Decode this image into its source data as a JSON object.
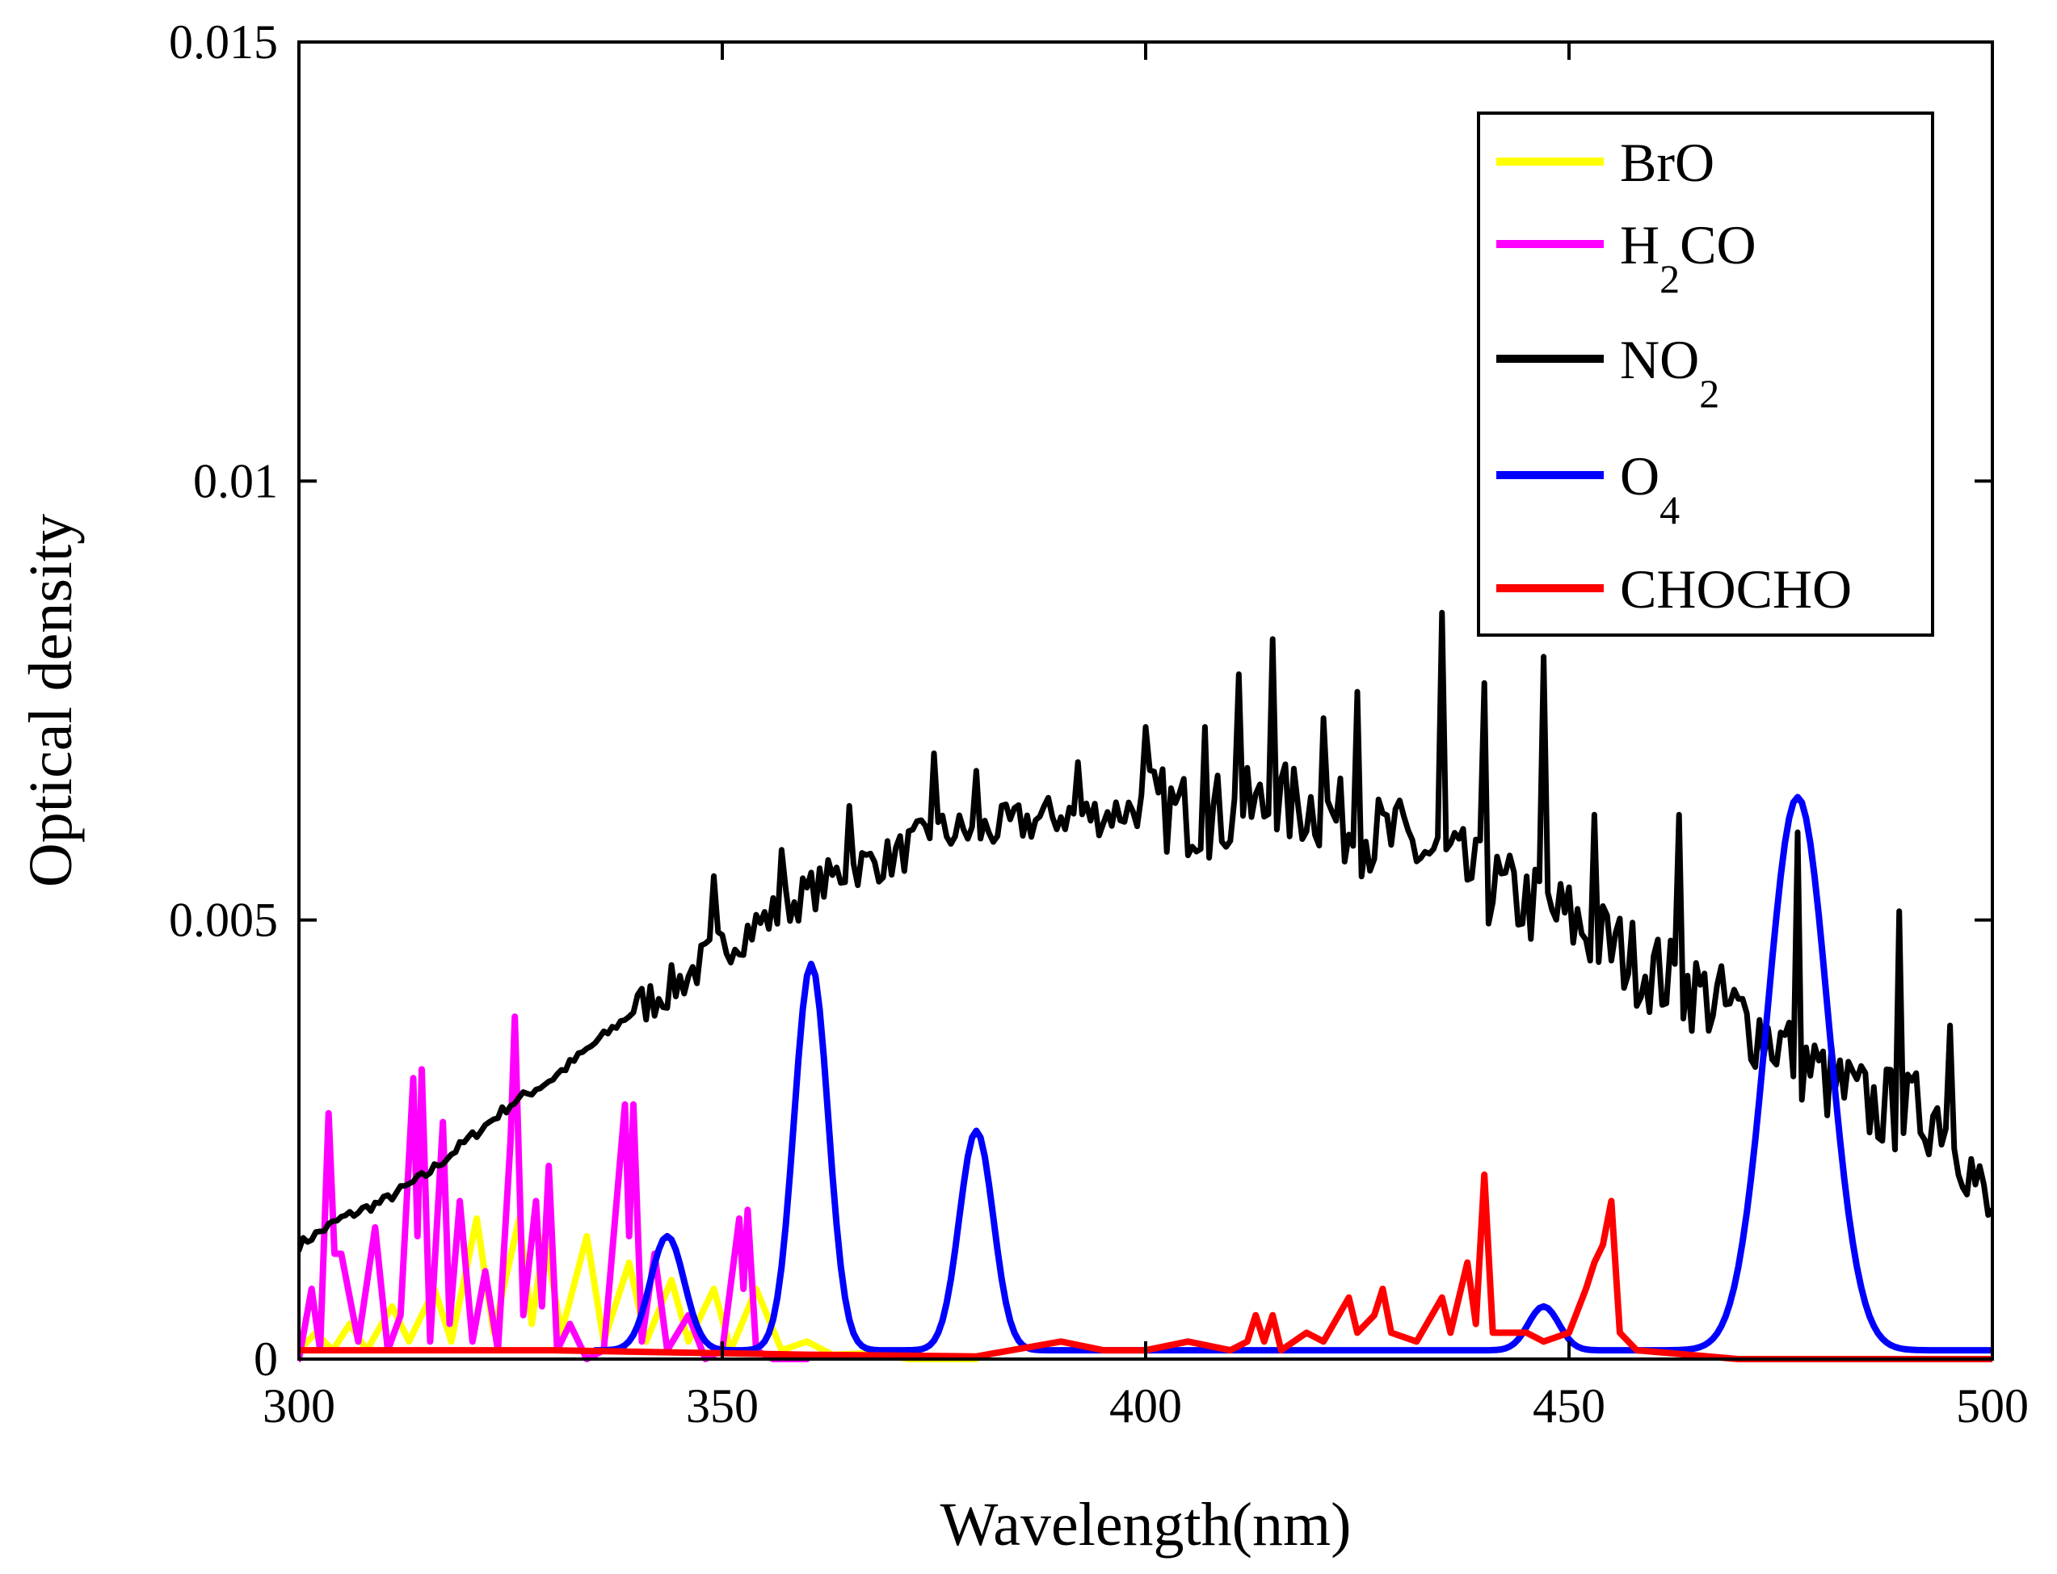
{
  "chart_data": {
    "type": "line",
    "title": "",
    "xlabel": "Wavelength(nm)",
    "ylabel": "Optical density",
    "xlim": [
      300,
      500
    ],
    "ylim": [
      0,
      0.015
    ],
    "xticks": [
      300,
      350,
      400,
      450,
      500
    ],
    "xtick_labels": [
      "300",
      "350",
      "400",
      "450",
      "500"
    ],
    "yticks": [
      0,
      0.005,
      0.01,
      0.015
    ],
    "ytick_labels": [
      "0",
      "0.005",
      "0.01",
      "0.015"
    ],
    "grid": false,
    "legend_position": "top-right",
    "series": [
      {
        "id": "bro",
        "name": "BrO",
        "legend_main": "BrO",
        "legend_sub": "",
        "legend_tail": "",
        "color": "#ffff00",
        "peaks": [
          [
            302,
            0.0003
          ],
          [
            306,
            0.0004
          ],
          [
            311,
            0.0006
          ],
          [
            316,
            0.0008
          ],
          [
            321,
            0.0016
          ],
          [
            326,
            0.0016
          ],
          [
            329,
            0.0014
          ],
          [
            334,
            0.0014
          ],
          [
            339,
            0.0011
          ],
          [
            344,
            0.0009
          ],
          [
            349,
            0.0008
          ],
          [
            354,
            0.0008
          ],
          [
            360,
            0.0002
          ],
          [
            368,
            7e-05
          ]
        ],
        "points": [
          [
            300,
            0.0001
          ],
          [
            302,
            0.0003
          ],
          [
            304,
            0.0001
          ],
          [
            306,
            0.0004
          ],
          [
            308,
            0.0001
          ],
          [
            311,
            0.0006
          ],
          [
            313,
            0.0002
          ],
          [
            316,
            0.0008
          ],
          [
            318,
            0.0002
          ],
          [
            321,
            0.0016
          ],
          [
            323,
            0.0003
          ],
          [
            326,
            0.0016
          ],
          [
            327.5,
            0.0004
          ],
          [
            329,
            0.0014
          ],
          [
            331,
            0.0003
          ],
          [
            334,
            0.0014
          ],
          [
            336,
            0.0002
          ],
          [
            339,
            0.0011
          ],
          [
            341,
            0.0002
          ],
          [
            344,
            0.0009
          ],
          [
            346,
            0.0002
          ],
          [
            349,
            0.0008
          ],
          [
            351,
            0.0001
          ],
          [
            354,
            0.0008
          ],
          [
            357,
            0.0001
          ],
          [
            360,
            0.0002
          ],
          [
            363,
            5e-05
          ],
          [
            368,
            7e-05
          ],
          [
            372,
            0.0
          ],
          [
            380,
            0.0
          ]
        ]
      },
      {
        "id": "h2co",
        "name": "H2CO",
        "legend_main": "H",
        "legend_sub": "2",
        "legend_tail": "CO",
        "color": "#ff00ff",
        "peaks": [
          [
            301.5,
            0.0008
          ],
          [
            303.5,
            0.0028
          ],
          [
            305,
            0.0012
          ],
          [
            309,
            0.0015
          ],
          [
            313.5,
            0.0032
          ],
          [
            314.5,
            0.0033
          ],
          [
            317,
            0.0027
          ],
          [
            319,
            0.0018
          ],
          [
            322,
            0.001
          ],
          [
            325.5,
            0.0039
          ],
          [
            328,
            0.0018
          ],
          [
            329.5,
            0.0022
          ],
          [
            332,
            0.0004
          ],
          [
            338.5,
            0.0029
          ],
          [
            339.5,
            0.0029
          ],
          [
            342,
            0.0012
          ],
          [
            346,
            0.0005
          ],
          [
            352,
            0.0016
          ],
          [
            353,
            0.0017
          ]
        ],
        "points": [
          [
            300,
            0.0
          ],
          [
            301.5,
            0.0008
          ],
          [
            302.5,
            0.0001
          ],
          [
            303.5,
            0.0028
          ],
          [
            304.2,
            0.0012
          ],
          [
            305,
            0.0012
          ],
          [
            306,
            0.0007
          ],
          [
            307,
            0.0002
          ],
          [
            309,
            0.0015
          ],
          [
            310.5,
            0.0001
          ],
          [
            312,
            0.0005
          ],
          [
            313.5,
            0.0032
          ],
          [
            314,
            0.0014
          ],
          [
            314.5,
            0.0033
          ],
          [
            315.5,
            0.0002
          ],
          [
            317,
            0.0027
          ],
          [
            317.8,
            0.0004
          ],
          [
            319,
            0.0018
          ],
          [
            320.5,
            0.0002
          ],
          [
            322,
            0.001
          ],
          [
            323.5,
            0.0001
          ],
          [
            325,
            0.0025
          ],
          [
            325.5,
            0.0039
          ],
          [
            326.5,
            0.0005
          ],
          [
            328,
            0.0018
          ],
          [
            328.7,
            0.0006
          ],
          [
            329.5,
            0.0022
          ],
          [
            330.5,
            0.0001
          ],
          [
            332,
            0.0004
          ],
          [
            334,
            0.0
          ],
          [
            336,
            0.0001
          ],
          [
            338.5,
            0.0029
          ],
          [
            339,
            0.0014
          ],
          [
            339.5,
            0.0029
          ],
          [
            340.5,
            0.0002
          ],
          [
            342,
            0.0012
          ],
          [
            343.5,
            0.0001
          ],
          [
            346,
            0.0005
          ],
          [
            348,
            0.0
          ],
          [
            350,
            0.0001
          ],
          [
            352,
            0.0016
          ],
          [
            352.5,
            0.0008
          ],
          [
            353,
            0.0017
          ],
          [
            354,
            0.0001
          ],
          [
            356,
            0.0
          ],
          [
            360,
            0.0
          ]
        ]
      },
      {
        "id": "no2",
        "name": "NO2",
        "legend_main": "NO",
        "legend_sub": "2",
        "legend_tail": "",
        "color": "#000000",
        "points": [
          [
            300,
            0.0013
          ],
          [
            305,
            0.0016
          ],
          [
            310,
            0.0018
          ],
          [
            315,
            0.0021
          ],
          [
            320,
            0.0025
          ],
          [
            325,
            0.0029
          ],
          [
            330,
            0.0032
          ],
          [
            335,
            0.0036
          ],
          [
            340,
            0.004
          ],
          [
            345,
            0.0043
          ],
          [
            350,
            0.0047
          ],
          [
            355,
            0.005
          ],
          [
            360,
            0.0053
          ],
          [
            365,
            0.0056
          ],
          [
            370,
            0.0057
          ],
          [
            375,
            0.006
          ],
          [
            380,
            0.006
          ],
          [
            385,
            0.0061
          ],
          [
            390,
            0.0062
          ],
          [
            395,
            0.0062
          ],
          [
            400,
            0.0063
          ],
          [
            405,
            0.0062
          ],
          [
            410,
            0.0062
          ],
          [
            415,
            0.0063
          ],
          [
            420,
            0.0063
          ],
          [
            425,
            0.006
          ],
          [
            430,
            0.0059
          ],
          [
            435,
            0.0057
          ],
          [
            440,
            0.0054
          ],
          [
            445,
            0.0052
          ],
          [
            450,
            0.005
          ],
          [
            455,
            0.0047
          ],
          [
            460,
            0.0044
          ],
          [
            465,
            0.0042
          ],
          [
            470,
            0.0039
          ],
          [
            475,
            0.0036
          ],
          [
            480,
            0.0032
          ],
          [
            485,
            0.0029
          ],
          [
            490,
            0.0028
          ],
          [
            495,
            0.0028
          ],
          [
            500,
            0.0015
          ]
        ],
        "noise_spikes": [
          [
            349,
            0.0055
          ],
          [
            357,
            0.0058
          ],
          [
            365,
            0.0063
          ],
          [
            375,
            0.0069
          ],
          [
            380,
            0.0067
          ],
          [
            392,
            0.0068
          ],
          [
            400,
            0.0072
          ],
          [
            407,
            0.0072
          ],
          [
            411,
            0.0078
          ],
          [
            415,
            0.0082
          ],
          [
            421,
            0.0073
          ],
          [
            425,
            0.0076
          ],
          [
            435,
            0.0085
          ],
          [
            440,
            0.0077
          ],
          [
            447,
            0.008
          ],
          [
            453,
            0.0062
          ],
          [
            463,
            0.0062
          ],
          [
            477,
            0.006
          ],
          [
            489,
            0.0051
          ],
          [
            495,
            0.0038
          ]
        ]
      },
      {
        "id": "o4",
        "name": "O4",
        "legend_main": "O",
        "legend_sub": "4",
        "legend_tail": "",
        "color": "#0000ff",
        "x_start": 335,
        "baseline": 0.0001,
        "peaks": [
          [
            343.5,
            0.0014
          ],
          [
            360.5,
            0.0045
          ],
          [
            380,
            0.0026
          ],
          [
            447,
            0.0006
          ],
          [
            477,
            0.0064
          ]
        ]
      },
      {
        "id": "chocho",
        "name": "CHOCHO",
        "legend_main": "CHOCHO",
        "legend_sub": "",
        "legend_tail": "",
        "color": "#ff0000",
        "peaks": [
          [
            413,
            0.0005
          ],
          [
            419,
            0.0003
          ],
          [
            424,
            0.0007
          ],
          [
            428,
            0.0008
          ],
          [
            435,
            0.0007
          ],
          [
            438,
            0.0011
          ],
          [
            440,
            0.0021
          ],
          [
            445,
            0.0003
          ],
          [
            454,
            0.0013
          ],
          [
            455,
            0.0018
          ]
        ],
        "points": [
          [
            300,
            0.0001
          ],
          [
            330,
            0.0001
          ],
          [
            360,
            5e-05
          ],
          [
            380,
            3e-05
          ],
          [
            390,
            0.0002
          ],
          [
            395,
            0.0001
          ],
          [
            400,
            0.0001
          ],
          [
            405,
            0.0002
          ],
          [
            410,
            0.0001
          ],
          [
            412,
            0.0002
          ],
          [
            413,
            0.0005
          ],
          [
            414,
            0.0002
          ],
          [
            415,
            0.0005
          ],
          [
            416,
            0.0001
          ],
          [
            419,
            0.0003
          ],
          [
            421,
            0.0002
          ],
          [
            424,
            0.0007
          ],
          [
            425,
            0.0003
          ],
          [
            427,
            0.0005
          ],
          [
            428,
            0.0008
          ],
          [
            429,
            0.0003
          ],
          [
            432,
            0.0002
          ],
          [
            435,
            0.0007
          ],
          [
            436,
            0.0003
          ],
          [
            438,
            0.0011
          ],
          [
            439,
            0.0004
          ],
          [
            440,
            0.0021
          ],
          [
            441,
            0.0003
          ],
          [
            443,
            0.0003
          ],
          [
            445,
            0.0003
          ],
          [
            447,
            0.0002
          ],
          [
            450,
            0.0003
          ],
          [
            452,
            0.0008
          ],
          [
            453,
            0.0011
          ],
          [
            454,
            0.0013
          ],
          [
            455,
            0.0018
          ],
          [
            456,
            0.0003
          ],
          [
            458,
            0.0001
          ],
          [
            470,
            0.0
          ],
          [
            500,
            0.0
          ]
        ]
      }
    ]
  }
}
